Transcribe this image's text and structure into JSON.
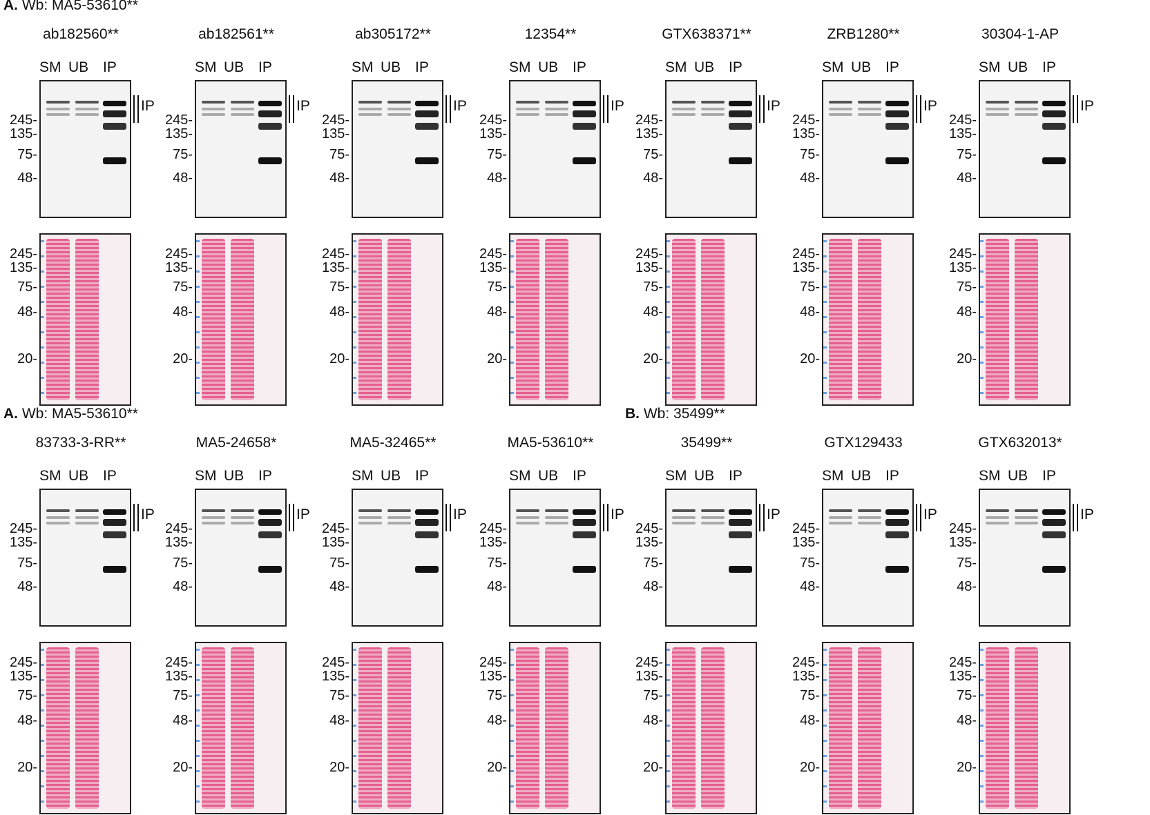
{
  "sections": [
    {
      "letter": "A.",
      "text": "Wb: MA5-53610**"
    },
    {
      "letter": "A.",
      "text": "Wb: MA5-53610**"
    },
    {
      "letter": "B.",
      "text": "Wb: 35499**"
    }
  ],
  "lanes": [
    "SM",
    "UB",
    "IP"
  ],
  "ip_label": "IP",
  "mw_wb": [
    "245-",
    "135-",
    "75-",
    "48-"
  ],
  "mw_ponceau": [
    "245-",
    "135-",
    "75-",
    "48-",
    "20-"
  ],
  "antibodies": [
    "ab182560**",
    "ab182561**",
    "ab305172**",
    "12354**",
    "GTX638371**",
    "ZRB1280**",
    "30304-1-AP",
    "83733-3-RR**",
    "MA5-24658*",
    "MA5-32465**",
    "MA5-53610**",
    "35499**",
    "GTX129433",
    "GTX632013*"
  ],
  "colors": {
    "ponceau": "#e0306f",
    "band": "#111111",
    "ladder_red": "#d62020",
    "ladder_blue": "#4a86d8"
  }
}
